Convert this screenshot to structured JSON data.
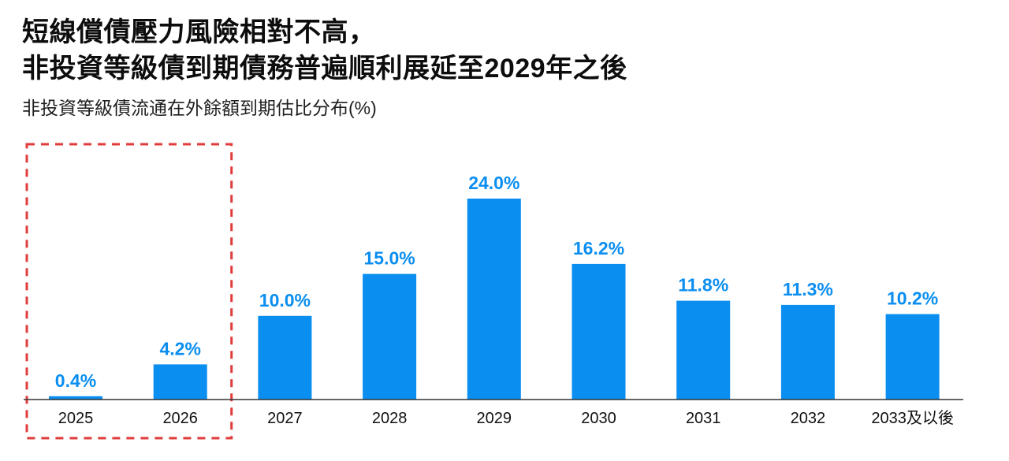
{
  "title_lines": [
    "短線償債壓力風險相對不高，",
    "非投資等級債到期債務普遍順利展延至2029年之後"
  ],
  "subtitle": "非投資等級債流通在外餘額到期估比分布(%)",
  "colors": {
    "bar": "#0a8ef0",
    "label": "#0a8ef0",
    "axis": "#333333",
    "tick_text": "#111111",
    "highlight_box": "#e03c3c"
  },
  "chart_data": {
    "type": "bar",
    "title": "非投資等級債流通在外餘額到期估比分布(%)",
    "xlabel": "",
    "ylabel": "",
    "categories": [
      "2025",
      "2026",
      "2027",
      "2028",
      "2029",
      "2030",
      "2031",
      "2032",
      "2033及以後"
    ],
    "values": [
      0.4,
      4.2,
      10.0,
      15.0,
      24.0,
      16.2,
      11.8,
      11.3,
      10.2
    ],
    "value_labels": [
      "0.4%",
      "4.2%",
      "10.0%",
      "15.0%",
      "24.0%",
      "16.2%",
      "11.8%",
      "11.3%",
      "10.2%"
    ],
    "ylim": [
      0,
      24
    ],
    "grid": false,
    "legend": "none",
    "highlight": {
      "style": "dashed-box",
      "categories": [
        "2025",
        "2026"
      ]
    }
  }
}
